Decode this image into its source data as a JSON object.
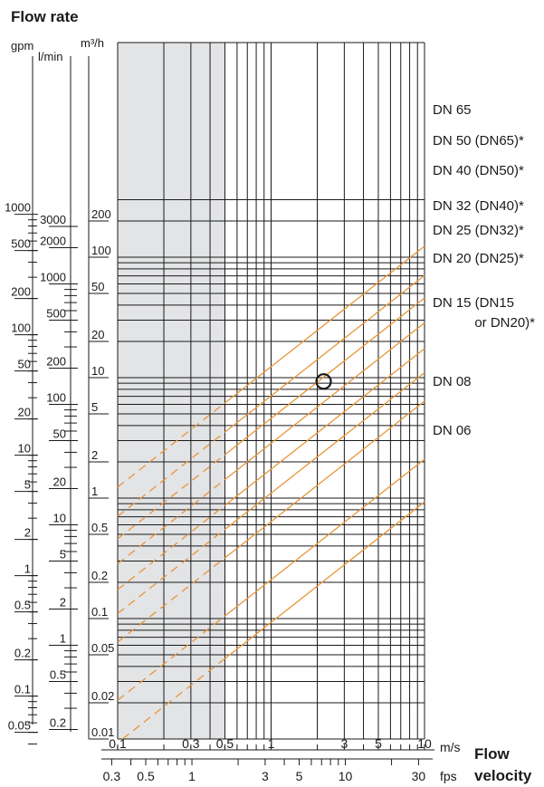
{
  "chart_data": {
    "type": "line",
    "title": "Flow rate",
    "xlabel": "Flow velocity",
    "x_units": {
      "primary": "m/s",
      "secondary": "fps"
    },
    "y_units": {
      "left_outer": "gpm",
      "left_inner": "l/min",
      "right": "m³/h"
    },
    "x_scale": "log",
    "y_scale": "log",
    "xlim": [
      0.1,
      10
    ],
    "ylim": [
      0.01,
      300
    ],
    "x_ticks_ms": [
      "0.1",
      "0.3",
      "0.5",
      "1",
      "3",
      "5",
      "10"
    ],
    "x_ticks_fps": [
      "0.3",
      "0.5",
      "1",
      "3",
      "5",
      "10",
      "30"
    ],
    "y_ticks_m3h": [
      "200",
      "100",
      "50",
      "20",
      "10",
      "5",
      "2",
      "1",
      "0.5",
      "0.2",
      "0.1",
      "0.05",
      "0.02",
      "0.01"
    ],
    "y_ticks_lmin": [
      "3000",
      "2000",
      "1000",
      "500",
      "200",
      "100",
      "50",
      "20",
      "10",
      "5",
      "2",
      "1",
      "0.5",
      "0.2"
    ],
    "y_ticks_gpm": [
      "1000",
      "500",
      "200",
      "100",
      "50",
      "20",
      "10",
      "5",
      "2",
      "1",
      "0.5",
      "0.2",
      "0.1",
      "0.05"
    ],
    "shaded_region_ms": [
      0.1,
      0.5
    ],
    "grid": true,
    "series": [
      {
        "name": "DN 65",
        "q_at_10ms": 123.4
      },
      {
        "name": "DN 50 (DN65)*",
        "q_at_10ms": 70.6
      },
      {
        "name": "DN 40 (DN50)*",
        "q_at_10ms": 45.9
      },
      {
        "name": "DN 32 (DN40)*",
        "q_at_10ms": 28.5
      },
      {
        "name": "DN 25 (DN32)*",
        "q_at_10ms": 17.4
      },
      {
        "name": "DN 20 (DN25)*",
        "q_at_10ms": 11.0
      },
      {
        "name": "DN 15 (DN15 or DN20)*",
        "q_at_10ms": 6.38
      },
      {
        "name": "DN 08",
        "q_at_10ms": 2.1
      },
      {
        "name": "DN 06",
        "q_at_10ms": 0.93
      }
    ],
    "example_point": {
      "velocity_ms": 2.2,
      "flow_m3h": 9.3
    },
    "line_color": "#e8953a",
    "shade_color": "#e3e4e6"
  }
}
